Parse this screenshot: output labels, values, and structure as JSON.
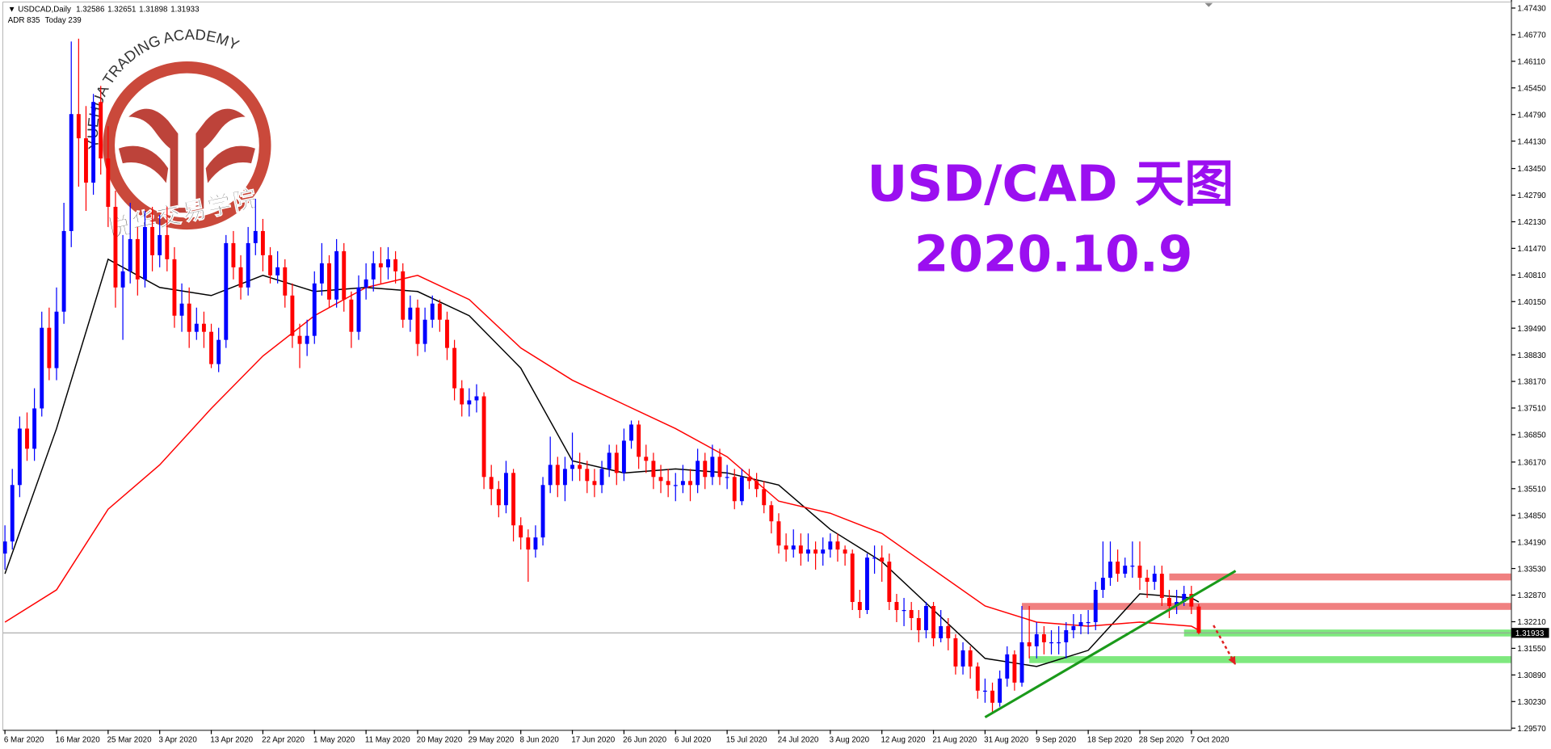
{
  "chart_data": {
    "type": "candlestick",
    "title": "USD/CAD 天图",
    "subtitle": "2020.10.9",
    "header": {
      "symbol": "USDCAD,Daily",
      "values": [
        1.32586,
        1.32651,
        1.31898,
        1.31933
      ],
      "adr": "ADR 835",
      "today": "Today 239"
    },
    "watermark": {
      "en": "YUEHUA TRADING ACADEMY",
      "zh": "悦华交易学院"
    },
    "up_color": "#0000ff",
    "down_color": "#ff0000",
    "ylim": [
      1.2952,
      1.4758
    ],
    "yticks": [
      {
        "value": 1.4743,
        "label": "1.47430"
      },
      {
        "value": 1.4677,
        "label": "1.46770"
      },
      {
        "value": 1.4611,
        "label": "1.46110"
      },
      {
        "value": 1.4545,
        "label": "1.45450"
      },
      {
        "value": 1.4479,
        "label": "1.44790"
      },
      {
        "value": 1.4413,
        "label": "1.44130"
      },
      {
        "value": 1.4345,
        "label": "1.43450"
      },
      {
        "value": 1.4279,
        "label": "1.42790"
      },
      {
        "value": 1.4213,
        "label": "1.42130"
      },
      {
        "value": 1.4147,
        "label": "1.41470"
      },
      {
        "value": 1.4081,
        "label": "1.40810"
      },
      {
        "value": 1.4015,
        "label": "1.40150"
      },
      {
        "value": 1.3949,
        "label": "1.39490"
      },
      {
        "value": 1.3883,
        "label": "1.38830"
      },
      {
        "value": 1.3817,
        "label": "1.38170"
      },
      {
        "value": 1.3751,
        "label": "1.37510"
      },
      {
        "value": 1.3685,
        "label": "1.36850"
      },
      {
        "value": 1.3617,
        "label": "1.36170"
      },
      {
        "value": 1.3551,
        "label": "1.35510"
      },
      {
        "value": 1.3485,
        "label": "1.34850"
      },
      {
        "value": 1.3419,
        "label": "1.34190"
      },
      {
        "value": 1.3353,
        "label": "1.33530"
      },
      {
        "value": 1.3287,
        "label": "1.32870"
      },
      {
        "value": 1.3221,
        "label": "1.32210"
      },
      {
        "value": 1.3155,
        "label": "1.31550"
      },
      {
        "value": 1.3089,
        "label": "1.30890"
      },
      {
        "value": 1.3023,
        "label": "1.30230"
      },
      {
        "value": 1.2957,
        "label": "1.29570"
      }
    ],
    "current_price": {
      "value": 1.31933,
      "label": "1.31933"
    },
    "categories": [
      "6 Mar 2020",
      null,
      null,
      null,
      null,
      null,
      null,
      "16 Mar 2020",
      null,
      null,
      null,
      null,
      null,
      null,
      "25 Mar 2020",
      null,
      null,
      null,
      null,
      null,
      null,
      "3 Apr 2020",
      null,
      null,
      null,
      null,
      null,
      null,
      "13 Apr 2020",
      null,
      null,
      null,
      null,
      null,
      null,
      "22 Apr 2020",
      null,
      null,
      null,
      null,
      null,
      null,
      "1 May 2020",
      null,
      null,
      null,
      null,
      null,
      null,
      "11 May 2020",
      null,
      null,
      null,
      null,
      null,
      null,
      "20 May 2020",
      null,
      null,
      null,
      null,
      null,
      null,
      "29 May 2020",
      null,
      null,
      null,
      null,
      null,
      null,
      "8 Jun 2020",
      null,
      null,
      null,
      null,
      null,
      null,
      "17 Jun 2020",
      null,
      null,
      null,
      null,
      null,
      null,
      "26 Jun 2020",
      null,
      null,
      null,
      null,
      null,
      null,
      "6 Jul 2020",
      null,
      null,
      null,
      null,
      null,
      null,
      "15 Jul 2020",
      null,
      null,
      null,
      null,
      null,
      null,
      "24 Jul 2020",
      null,
      null,
      null,
      null,
      null,
      null,
      "3 Aug 2020",
      null,
      null,
      null,
      null,
      null,
      null,
      "12 Aug 2020",
      null,
      null,
      null,
      null,
      null,
      null,
      "21 Aug 2020",
      null,
      null,
      null,
      null,
      null,
      null,
      "31 Aug 2020",
      null,
      null,
      null,
      null,
      null,
      null,
      "9 Sep 2020",
      null,
      null,
      null,
      null,
      null,
      null,
      "18 Sep 2020",
      null,
      null,
      null,
      null,
      null,
      null,
      "28 Sep 2020",
      null,
      null,
      null,
      null,
      null,
      null,
      "7 Oct 2020",
      null
    ],
    "ohlc": [
      [
        1.339,
        1.346,
        1.335,
        1.342
      ],
      [
        1.342,
        1.36,
        1.34,
        1.356
      ],
      [
        1.356,
        1.373,
        1.353,
        1.37
      ],
      [
        1.37,
        1.374,
        1.362,
        1.365
      ],
      [
        1.365,
        1.38,
        1.362,
        1.375
      ],
      [
        1.375,
        1.399,
        1.373,
        1.395
      ],
      [
        1.395,
        1.4,
        1.382,
        1.385
      ],
      [
        1.385,
        1.405,
        1.382,
        1.399
      ],
      [
        1.399,
        1.426,
        1.396,
        1.419
      ],
      [
        1.419,
        1.466,
        1.415,
        1.448
      ],
      [
        1.448,
        1.4667,
        1.43,
        1.442
      ],
      [
        1.442,
        1.45,
        1.424,
        1.431
      ],
      [
        1.431,
        1.453,
        1.428,
        1.451
      ],
      [
        1.451,
        1.455,
        1.433,
        1.437
      ],
      [
        1.437,
        1.445,
        1.42,
        1.425
      ],
      [
        1.425,
        1.429,
        1.4,
        1.405
      ],
      [
        1.405,
        1.418,
        1.392,
        1.409
      ],
      [
        1.409,
        1.426,
        1.406,
        1.417
      ],
      [
        1.417,
        1.42,
        1.403,
        1.407
      ],
      [
        1.407,
        1.424,
        1.405,
        1.42
      ],
      [
        1.42,
        1.425,
        1.409,
        1.413
      ],
      [
        1.413,
        1.423,
        1.41,
        1.418
      ],
      [
        1.418,
        1.425,
        1.409,
        1.412
      ],
      [
        1.412,
        1.415,
        1.395,
        1.398
      ],
      [
        1.398,
        1.406,
        1.394,
        1.401
      ],
      [
        1.401,
        1.405,
        1.39,
        1.394
      ],
      [
        1.394,
        1.4,
        1.392,
        1.396
      ],
      [
        1.396,
        1.399,
        1.39,
        1.394
      ],
      [
        1.394,
        1.396,
        1.385,
        1.386
      ],
      [
        1.386,
        1.395,
        1.384,
        1.392
      ],
      [
        1.392,
        1.418,
        1.39,
        1.416
      ],
      [
        1.416,
        1.419,
        1.407,
        1.41
      ],
      [
        1.41,
        1.413,
        1.402,
        1.405
      ],
      [
        1.405,
        1.42,
        1.403,
        1.416
      ],
      [
        1.416,
        1.427,
        1.413,
        1.419
      ],
      [
        1.419,
        1.422,
        1.409,
        1.413
      ],
      [
        1.413,
        1.415,
        1.406,
        1.408
      ],
      [
        1.408,
        1.414,
        1.406,
        1.41
      ],
      [
        1.41,
        1.412,
        1.4,
        1.403
      ],
      [
        1.403,
        1.406,
        1.39,
        1.393
      ],
      [
        1.393,
        1.396,
        1.385,
        1.391
      ],
      [
        1.391,
        1.397,
        1.388,
        1.393
      ],
      [
        1.393,
        1.409,
        1.391,
        1.406
      ],
      [
        1.406,
        1.416,
        1.403,
        1.411
      ],
      [
        1.411,
        1.413,
        1.4,
        1.402
      ],
      [
        1.402,
        1.417,
        1.4,
        1.414
      ],
      [
        1.414,
        1.416,
        1.399,
        1.402
      ],
      [
        1.402,
        1.404,
        1.39,
        1.394
      ],
      [
        1.394,
        1.408,
        1.392,
        1.405
      ],
      [
        1.405,
        1.411,
        1.402,
        1.407
      ],
      [
        1.407,
        1.414,
        1.404,
        1.411
      ],
      [
        1.411,
        1.415,
        1.406,
        1.41
      ],
      [
        1.41,
        1.415,
        1.407,
        1.412
      ],
      [
        1.412,
        1.414,
        1.406,
        1.409
      ],
      [
        1.409,
        1.411,
        1.395,
        1.397
      ],
      [
        1.397,
        1.403,
        1.394,
        1.4
      ],
      [
        1.4,
        1.402,
        1.388,
        1.391
      ],
      [
        1.391,
        1.4,
        1.389,
        1.397
      ],
      [
        1.397,
        1.403,
        1.395,
        1.401
      ],
      [
        1.401,
        1.402,
        1.394,
        1.397
      ],
      [
        1.397,
        1.399,
        1.387,
        1.39
      ],
      [
        1.39,
        1.392,
        1.377,
        1.38
      ],
      [
        1.38,
        1.382,
        1.373,
        1.376
      ],
      [
        1.376,
        1.38,
        1.373,
        1.377
      ],
      [
        1.377,
        1.381,
        1.374,
        1.378
      ],
      [
        1.378,
        1.379,
        1.355,
        1.358
      ],
      [
        1.358,
        1.361,
        1.351,
        1.355
      ],
      [
        1.355,
        1.357,
        1.348,
        1.351
      ],
      [
        1.351,
        1.362,
        1.349,
        1.359
      ],
      [
        1.359,
        1.36,
        1.342,
        1.346
      ],
      [
        1.346,
        1.348,
        1.34,
        1.343
      ],
      [
        1.343,
        1.345,
        1.332,
        1.34
      ],
      [
        1.34,
        1.346,
        1.338,
        1.343
      ],
      [
        1.343,
        1.358,
        1.341,
        1.356
      ],
      [
        1.356,
        1.368,
        1.354,
        1.361
      ],
      [
        1.361,
        1.363,
        1.353,
        1.356
      ],
      [
        1.356,
        1.363,
        1.352,
        1.36
      ],
      [
        1.36,
        1.369,
        1.357,
        1.361
      ],
      [
        1.361,
        1.364,
        1.357,
        1.36
      ],
      [
        1.36,
        1.362,
        1.354,
        1.357
      ],
      [
        1.357,
        1.36,
        1.353,
        1.356
      ],
      [
        1.356,
        1.362,
        1.354,
        1.36
      ],
      [
        1.36,
        1.366,
        1.358,
        1.364
      ],
      [
        1.364,
        1.366,
        1.356,
        1.359
      ],
      [
        1.359,
        1.37,
        1.357,
        1.367
      ],
      [
        1.367,
        1.372,
        1.365,
        1.371
      ],
      [
        1.371,
        1.372,
        1.36,
        1.363
      ],
      [
        1.363,
        1.366,
        1.359,
        1.362
      ],
      [
        1.362,
        1.364,
        1.355,
        1.358
      ],
      [
        1.358,
        1.361,
        1.354,
        1.357
      ],
      [
        1.357,
        1.36,
        1.353,
        1.356
      ],
      [
        1.356,
        1.359,
        1.352,
        1.356
      ],
      [
        1.356,
        1.361,
        1.354,
        1.357
      ],
      [
        1.357,
        1.36,
        1.352,
        1.356
      ],
      [
        1.356,
        1.365,
        1.354,
        1.362
      ],
      [
        1.362,
        1.364,
        1.355,
        1.358
      ],
      [
        1.358,
        1.366,
        1.356,
        1.363
      ],
      [
        1.363,
        1.365,
        1.356,
        1.358
      ],
      [
        1.358,
        1.361,
        1.355,
        1.358
      ],
      [
        1.358,
        1.36,
        1.35,
        1.352
      ],
      [
        1.352,
        1.36,
        1.351,
        1.358
      ],
      [
        1.358,
        1.36,
        1.355,
        1.357
      ],
      [
        1.357,
        1.359,
        1.353,
        1.355
      ],
      [
        1.355,
        1.357,
        1.349,
        1.351
      ],
      [
        1.351,
        1.352,
        1.344,
        1.347
      ],
      [
        1.347,
        1.349,
        1.339,
        1.341
      ],
      [
        1.341,
        1.344,
        1.337,
        1.34
      ],
      [
        1.34,
        1.345,
        1.338,
        1.341
      ],
      [
        1.341,
        1.344,
        1.336,
        1.339
      ],
      [
        1.339,
        1.344,
        1.337,
        1.34
      ],
      [
        1.34,
        1.342,
        1.335,
        1.339
      ],
      [
        1.339,
        1.343,
        1.336,
        1.34
      ],
      [
        1.34,
        1.344,
        1.338,
        1.342
      ],
      [
        1.342,
        1.344,
        1.337,
        1.34
      ],
      [
        1.34,
        1.341,
        1.336,
        1.339
      ],
      [
        1.339,
        1.34,
        1.325,
        1.327
      ],
      [
        1.327,
        1.33,
        1.323,
        1.325
      ],
      [
        1.325,
        1.339,
        1.324,
        1.338
      ],
      [
        1.338,
        1.341,
        1.334,
        1.338
      ],
      [
        1.338,
        1.341,
        1.332,
        1.337
      ],
      [
        1.337,
        1.339,
        1.325,
        1.327
      ],
      [
        1.327,
        1.329,
        1.322,
        1.325
      ],
      [
        1.325,
        1.328,
        1.321,
        1.325
      ],
      [
        1.325,
        1.327,
        1.32,
        1.323
      ],
      [
        1.323,
        1.325,
        1.317,
        1.32
      ],
      [
        1.32,
        1.327,
        1.318,
        1.326
      ],
      [
        1.326,
        1.327,
        1.316,
        1.318
      ],
      [
        1.318,
        1.325,
        1.317,
        1.321
      ],
      [
        1.321,
        1.323,
        1.315,
        1.318
      ],
      [
        1.318,
        1.319,
        1.309,
        1.311
      ],
      [
        1.311,
        1.317,
        1.309,
        1.315
      ],
      [
        1.315,
        1.316,
        1.308,
        1.311
      ],
      [
        1.311,
        1.312,
        1.303,
        1.305
      ],
      [
        1.305,
        1.308,
        1.302,
        1.305
      ],
      [
        1.305,
        1.307,
        1.2995,
        1.302
      ],
      [
        1.302,
        1.31,
        1.301,
        1.308
      ],
      [
        1.308,
        1.316,
        1.306,
        1.314
      ],
      [
        1.314,
        1.315,
        1.305,
        1.307
      ],
      [
        1.307,
        1.326,
        1.306,
        1.317
      ],
      [
        1.317,
        1.326,
        1.313,
        1.316
      ],
      [
        1.316,
        1.322,
        1.313,
        1.319
      ],
      [
        1.319,
        1.321,
        1.314,
        1.317
      ],
      [
        1.317,
        1.32,
        1.314,
        1.317
      ],
      [
        1.317,
        1.321,
        1.314,
        1.317
      ],
      [
        1.317,
        1.322,
        1.313,
        1.32
      ],
      [
        1.32,
        1.324,
        1.318,
        1.321
      ],
      [
        1.321,
        1.324,
        1.319,
        1.322
      ],
      [
        1.322,
        1.325,
        1.319,
        1.322
      ],
      [
        1.322,
        1.332,
        1.32,
        1.33
      ],
      [
        1.33,
        1.342,
        1.328,
        1.333
      ],
      [
        1.333,
        1.342,
        1.331,
        1.337
      ],
      [
        1.337,
        1.34,
        1.332,
        1.334
      ],
      [
        1.334,
        1.338,
        1.333,
        1.336
      ],
      [
        1.336,
        1.342,
        1.333,
        1.336
      ],
      [
        1.336,
        1.342,
        1.33,
        1.333
      ],
      [
        1.333,
        1.335,
        1.328,
        1.332
      ],
      [
        1.332,
        1.336,
        1.33,
        1.334
      ],
      [
        1.334,
        1.336,
        1.326,
        1.328
      ],
      [
        1.328,
        1.33,
        1.323,
        1.326
      ],
      [
        1.326,
        1.33,
        1.324,
        1.327
      ],
      [
        1.327,
        1.331,
        1.326,
        1.329
      ],
      [
        1.329,
        1.331,
        1.324,
        1.32586
      ],
      [
        1.32586,
        1.32651,
        1.31898,
        1.31933
      ]
    ],
    "ma": [
      {
        "color": "#000000",
        "x": [
          0,
          7,
          14,
          21,
          28,
          35,
          42,
          49,
          56,
          63,
          70,
          77,
          84,
          91,
          98,
          105,
          112,
          119,
          126,
          133,
          140,
          147,
          154,
          161,
          162
        ],
        "values": [
          1.334,
          1.37,
          1.412,
          1.405,
          1.403,
          1.408,
          1.404,
          1.405,
          1.404,
          1.398,
          1.385,
          1.362,
          1.359,
          1.36,
          1.359,
          1.356,
          1.345,
          1.337,
          1.325,
          1.313,
          1.311,
          1.315,
          1.329,
          1.328,
          1.327
        ]
      },
      {
        "color": "#ff0000",
        "x": [
          0,
          7,
          14,
          21,
          28,
          35,
          42,
          49,
          56,
          63,
          70,
          77,
          84,
          91,
          98,
          105,
          112,
          119,
          126,
          133,
          140,
          147,
          154,
          161,
          162
        ],
        "values": [
          1.322,
          1.33,
          1.35,
          1.361,
          1.375,
          1.388,
          1.398,
          1.405,
          1.408,
          1.402,
          1.39,
          1.382,
          1.376,
          1.37,
          1.363,
          1.352,
          1.349,
          1.344,
          1.335,
          1.326,
          1.322,
          1.321,
          1.322,
          1.321,
          1.32
        ]
      }
    ],
    "zones": [
      {
        "color": "#f08080",
        "x0": 158,
        "y": 1.3332
      },
      {
        "color": "#f08080",
        "x0": 138,
        "y": 1.3259
      },
      {
        "color": "#7ee87e",
        "x0": 160,
        "y": 1.3193
      },
      {
        "color": "#7ee87e",
        "x0": 139,
        "y": 1.3127
      }
    ],
    "trendline": {
      "color": "#1a9a1a",
      "x": [
        133,
        167
      ],
      "y": [
        1.2984,
        1.3347
      ]
    },
    "arrow": {
      "color": "#e02020",
      "x": [
        164,
        167
      ],
      "y": [
        1.3212,
        1.3114
      ]
    }
  }
}
